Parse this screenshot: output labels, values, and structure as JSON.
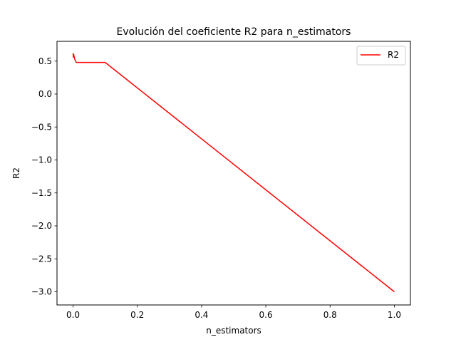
{
  "chart_data": {
    "type": "line",
    "title": "Evolución del coeficiente R2 para n_estimators",
    "xlabel": "n_estimators",
    "ylabel": "R2",
    "xlim": [
      -0.05,
      1.05
    ],
    "ylim": [
      -3.2,
      0.8
    ],
    "xticks": [
      0.0,
      0.2,
      0.4,
      0.6,
      0.8,
      1.0
    ],
    "xtick_labels": [
      "0.0",
      "0.2",
      "0.4",
      "0.6",
      "0.8",
      "1.0"
    ],
    "yticks": [
      0.5,
      0.0,
      -0.5,
      -1.0,
      -1.5,
      -2.0,
      -2.5,
      -3.0
    ],
    "ytick_labels": [
      "0.5",
      "0.0",
      "−0.5",
      "−1.0",
      "−1.5",
      "−2.0",
      "−2.5",
      "−3.0"
    ],
    "grid": false,
    "legend_position": "top-right",
    "series": [
      {
        "name": "R2",
        "color": "#ff0000",
        "x": [
          0.0,
          0.001,
          0.002,
          0.005,
          0.01,
          0.05,
          0.1,
          1.0
        ],
        "y": [
          0.62,
          0.56,
          0.6,
          0.53,
          0.48,
          0.48,
          0.48,
          -3.0
        ]
      }
    ]
  }
}
